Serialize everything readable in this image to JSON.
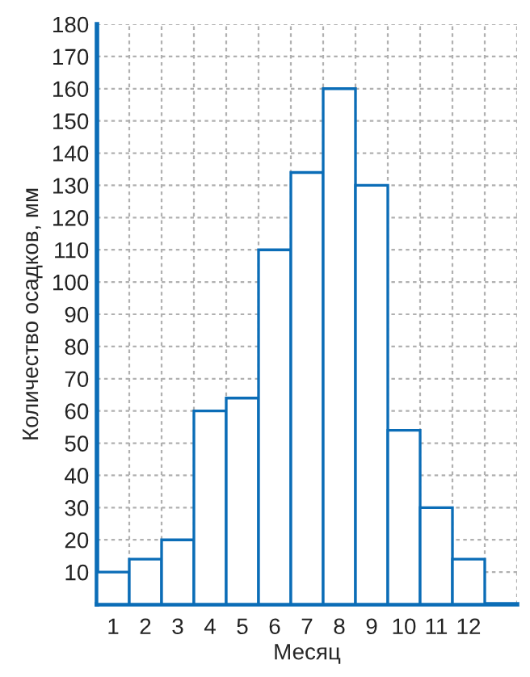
{
  "chart_data": {
    "type": "bar",
    "xlabel": "Месяц",
    "ylabel": "Количество осадков, мм",
    "categories": [
      "1",
      "2",
      "3",
      "4",
      "5",
      "6",
      "7",
      "8",
      "9",
      "10",
      "11",
      "12"
    ],
    "values": [
      10,
      14,
      20,
      60,
      64,
      110,
      134,
      160,
      130,
      54,
      30,
      14
    ],
    "color": "#0b6db7",
    "ylim": [
      0,
      180
    ],
    "yticks": [
      10,
      20,
      30,
      40,
      50,
      60,
      70,
      80,
      90,
      100,
      110,
      120,
      130,
      140,
      150,
      160,
      170,
      180
    ],
    "grid": true
  }
}
